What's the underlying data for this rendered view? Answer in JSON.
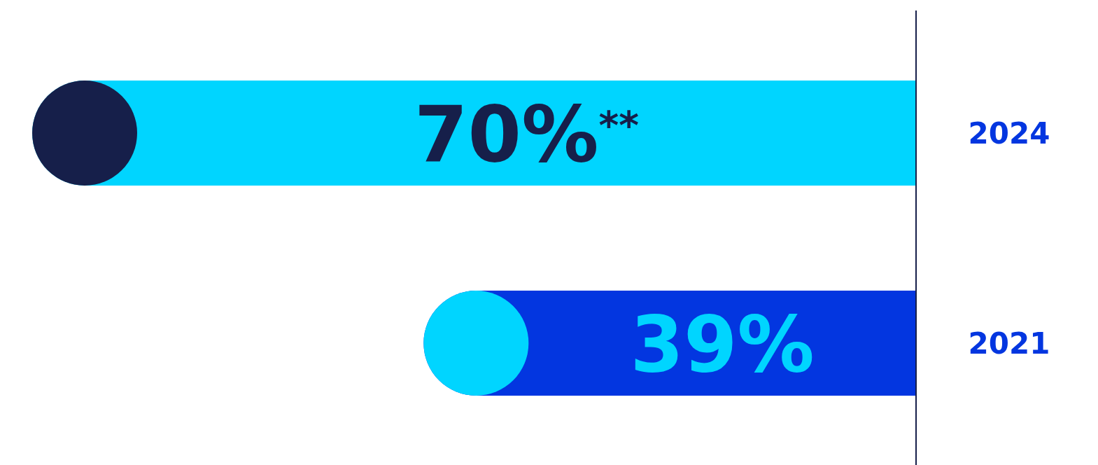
{
  "chart_data": {
    "type": "bar",
    "orientation": "horizontal",
    "relative": false,
    "categories": [
      "2024",
      "2021"
    ],
    "values": [
      70,
      39
    ],
    "colors": [
      "#00d5ff",
      "#0336e0"
    ],
    "value_labels": [
      "70%$^{**}$",
      "39%"
    ]
  }
}
